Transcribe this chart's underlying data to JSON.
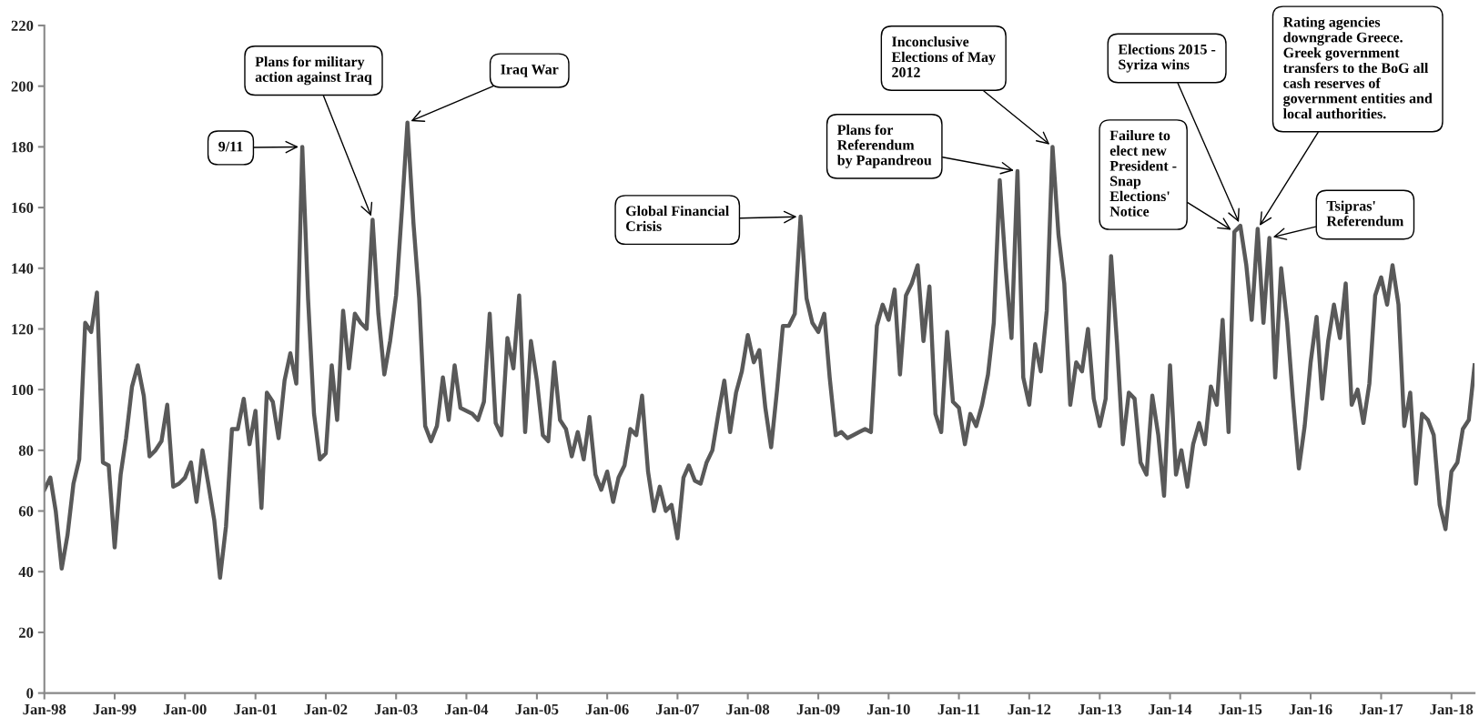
{
  "chart_data": {
    "type": "line",
    "x": [
      "1998-01",
      "1998-02",
      "1998-03",
      "1998-04",
      "1998-05",
      "1998-06",
      "1998-07",
      "1998-08",
      "1998-09",
      "1998-10",
      "1998-11",
      "1998-12",
      "1999-01",
      "1999-02",
      "1999-03",
      "1999-04",
      "1999-05",
      "1999-06",
      "1999-07",
      "1999-08",
      "1999-09",
      "1999-10",
      "1999-11",
      "1999-12",
      "2000-01",
      "2000-02",
      "2000-03",
      "2000-04",
      "2000-05",
      "2000-06",
      "2000-07",
      "2000-08",
      "2000-09",
      "2000-10",
      "2000-11",
      "2000-12",
      "2001-01",
      "2001-02",
      "2001-03",
      "2001-04",
      "2001-05",
      "2001-06",
      "2001-07",
      "2001-08",
      "2001-09",
      "2001-10",
      "2001-11",
      "2001-12",
      "2002-01",
      "2002-02",
      "2002-03",
      "2002-04",
      "2002-05",
      "2002-06",
      "2002-07",
      "2002-08",
      "2002-09",
      "2002-10",
      "2002-11",
      "2002-12",
      "2003-01",
      "2003-02",
      "2003-03",
      "2003-04",
      "2003-05",
      "2003-06",
      "2003-07",
      "2003-08",
      "2003-09",
      "2003-10",
      "2003-11",
      "2003-12",
      "2004-01",
      "2004-02",
      "2004-03",
      "2004-04",
      "2004-05",
      "2004-06",
      "2004-07",
      "2004-08",
      "2004-09",
      "2004-10",
      "2004-11",
      "2004-12",
      "2005-01",
      "2005-02",
      "2005-03",
      "2005-04",
      "2005-05",
      "2005-06",
      "2005-07",
      "2005-08",
      "2005-09",
      "2005-10",
      "2005-11",
      "2005-12",
      "2006-01",
      "2006-02",
      "2006-03",
      "2006-04",
      "2006-05",
      "2006-06",
      "2006-07",
      "2006-08",
      "2006-09",
      "2006-10",
      "2006-11",
      "2006-12",
      "2007-01",
      "2007-02",
      "2007-03",
      "2007-04",
      "2007-05",
      "2007-06",
      "2007-07",
      "2007-08",
      "2007-09",
      "2007-10",
      "2007-11",
      "2007-12",
      "2008-01",
      "2008-02",
      "2008-03",
      "2008-04",
      "2008-05",
      "2008-06",
      "2008-07",
      "2008-08",
      "2008-09",
      "2008-10",
      "2008-11",
      "2008-12",
      "2009-01",
      "2009-02",
      "2009-03",
      "2009-04",
      "2009-05",
      "2009-06",
      "2009-07",
      "2009-08",
      "2009-09",
      "2009-10",
      "2009-11",
      "2009-12",
      "2010-01",
      "2010-02",
      "2010-03",
      "2010-04",
      "2010-05",
      "2010-06",
      "2010-07",
      "2010-08",
      "2010-09",
      "2010-10",
      "2010-11",
      "2010-12",
      "2011-01",
      "2011-02",
      "2011-03",
      "2011-04",
      "2011-05",
      "2011-06",
      "2011-07",
      "2011-08",
      "2011-09",
      "2011-10",
      "2011-11",
      "2011-12",
      "2012-01",
      "2012-02",
      "2012-03",
      "2012-04",
      "2012-05",
      "2012-06",
      "2012-07",
      "2012-08",
      "2012-09",
      "2012-10",
      "2012-11",
      "2012-12",
      "2013-01",
      "2013-02",
      "2013-03",
      "2013-04",
      "2013-05",
      "2013-06",
      "2013-07",
      "2013-08",
      "2013-09",
      "2013-10",
      "2013-11",
      "2013-12",
      "2014-01",
      "2014-02",
      "2014-03",
      "2014-04",
      "2014-05",
      "2014-06",
      "2014-07",
      "2014-08",
      "2014-09",
      "2014-10",
      "2014-11",
      "2014-12",
      "2015-01",
      "2015-02",
      "2015-03",
      "2015-04",
      "2015-05",
      "2015-06",
      "2015-07",
      "2015-08",
      "2015-09",
      "2015-10",
      "2015-11",
      "2015-12",
      "2016-01",
      "2016-02",
      "2016-03",
      "2016-04",
      "2016-05",
      "2016-06",
      "2016-07",
      "2016-08",
      "2016-09",
      "2016-10",
      "2016-11",
      "2016-12",
      "2017-01",
      "2017-02",
      "2017-03",
      "2017-04",
      "2017-05",
      "2017-06",
      "2017-07",
      "2017-08",
      "2017-09",
      "2017-10",
      "2017-11",
      "2017-12",
      "2018-01",
      "2018-02",
      "2018-03",
      "2018-04",
      "2018-05"
    ],
    "series": [
      {
        "color": "#595959",
        "values": [
          67,
          71,
          60,
          41,
          52,
          69,
          77,
          122,
          119,
          132,
          76,
          75,
          48,
          72,
          84,
          101,
          108,
          98,
          78,
          80,
          83,
          95,
          68,
          69,
          71,
          76,
          63,
          80,
          69,
          57,
          38,
          55,
          87,
          87,
          97,
          82,
          93,
          61,
          99,
          96,
          84,
          103,
          112,
          102,
          180,
          130,
          92,
          77,
          79,
          108,
          90,
          126,
          107,
          125,
          122,
          120,
          156,
          125,
          105,
          116,
          131,
          160,
          188,
          155,
          130,
          88,
          83,
          88,
          104,
          90,
          108,
          94,
          93,
          92,
          90,
          96,
          125,
          89,
          85,
          117,
          107,
          131,
          86,
          116,
          103,
          85,
          83,
          109,
          90,
          87,
          78,
          86,
          77,
          91,
          72,
          67,
          73,
          63,
          71,
          75,
          87,
          85,
          98,
          73,
          60,
          68,
          60,
          62,
          51,
          71,
          75,
          70,
          69,
          76,
          80,
          92,
          103,
          86,
          99,
          106,
          118,
          109,
          113,
          94,
          81,
          100,
          121,
          121,
          125,
          157,
          130,
          122,
          119,
          125,
          104,
          85,
          86,
          84,
          85,
          86,
          87,
          86,
          121,
          128,
          123,
          133,
          105,
          131,
          135,
          141,
          116,
          134,
          92,
          86,
          119,
          96,
          94,
          82,
          92,
          88,
          95,
          105,
          122,
          169,
          140,
          117,
          172,
          104,
          95,
          115,
          106,
          126,
          180,
          151,
          135,
          95,
          109,
          106,
          120,
          97,
          88,
          97,
          144,
          115,
          82,
          99,
          97,
          76,
          72,
          98,
          85,
          65,
          108,
          72,
          80,
          68,
          82,
          89,
          82,
          101,
          95,
          123,
          86,
          152,
          154,
          141,
          123,
          153,
          122,
          150,
          104,
          140,
          122,
          97,
          74,
          88,
          109,
          124,
          97,
          116,
          128,
          117,
          135,
          95,
          100,
          89,
          102,
          131,
          137,
          128,
          141,
          128,
          88,
          99,
          69,
          92,
          90,
          85,
          62,
          54,
          73,
          76,
          87,
          90,
          108
        ]
      }
    ],
    "xlim": [
      "1998-01",
      "2018-05"
    ],
    "xticks": [
      {
        "value": "1998-01",
        "label": "Jan-98"
      },
      {
        "value": "1999-01",
        "label": "Jan-99"
      },
      {
        "value": "2000-01",
        "label": "Jan-00"
      },
      {
        "value": "2001-01",
        "label": "Jan-01"
      },
      {
        "value": "2002-01",
        "label": "Jan-02"
      },
      {
        "value": "2003-01",
        "label": "Jan-03"
      },
      {
        "value": "2004-01",
        "label": "Jan-04"
      },
      {
        "value": "2005-01",
        "label": "Jan-05"
      },
      {
        "value": "2006-01",
        "label": "Jan-06"
      },
      {
        "value": "2007-01",
        "label": "Jan-07"
      },
      {
        "value": "2008-01",
        "label": "Jan-08"
      },
      {
        "value": "2009-01",
        "label": "Jan-09"
      },
      {
        "value": "2010-01",
        "label": "Jan-10"
      },
      {
        "value": "2011-01",
        "label": "Jan-11"
      },
      {
        "value": "2012-01",
        "label": "Jan-12"
      },
      {
        "value": "2013-01",
        "label": "Jan-13"
      },
      {
        "value": "2014-01",
        "label": "Jan-14"
      },
      {
        "value": "2015-01",
        "label": "Jan-15"
      },
      {
        "value": "2016-01",
        "label": "Jan-16"
      },
      {
        "value": "2017-01",
        "label": "Jan-17"
      },
      {
        "value": "2018-01",
        "label": "Jan-18"
      }
    ],
    "ylim": [
      0,
      220
    ],
    "yticks": [
      0,
      20,
      40,
      60,
      80,
      100,
      120,
      140,
      160,
      180,
      200,
      220
    ],
    "grid": false,
    "marker": "none",
    "line_style": "solid",
    "annotations": [
      {
        "text": "9/11",
        "x": "2001-09",
        "y": 180
      },
      {
        "text": "Plans for military\naction against Iraq",
        "x": "2002-09",
        "y": 156
      },
      {
        "text": "Iraq War",
        "x": "2003-03",
        "y": 188
      },
      {
        "text": "Global Financial\nCrisis",
        "x": "2008-10",
        "y": 157
      },
      {
        "text": "Plans for\nReferendum\nby Papandreou",
        "x": "2011-11",
        "y": 172
      },
      {
        "text": "Inconclusive\nElections of May\n2012",
        "x": "2012-05",
        "y": 180
      },
      {
        "text": "Elections 2015 -\nSyriza wins",
        "x": "2015-01",
        "y": 154
      },
      {
        "text": "Failure to\nelect new\nPresident -\nSnap\nElections'\nNotice",
        "x": "2014-12",
        "y": 152
      },
      {
        "text": "Rating agencies\ndowngrade Greece.\nGreek government\ntransfers to the BoG all\ncash reserves of\ngovernment entities and\nlocal authorities.",
        "x": "2015-04",
        "y": 153
      },
      {
        "text": "Tsipras'\nReferendum",
        "x": "2015-06",
        "y": 150
      }
    ]
  }
}
